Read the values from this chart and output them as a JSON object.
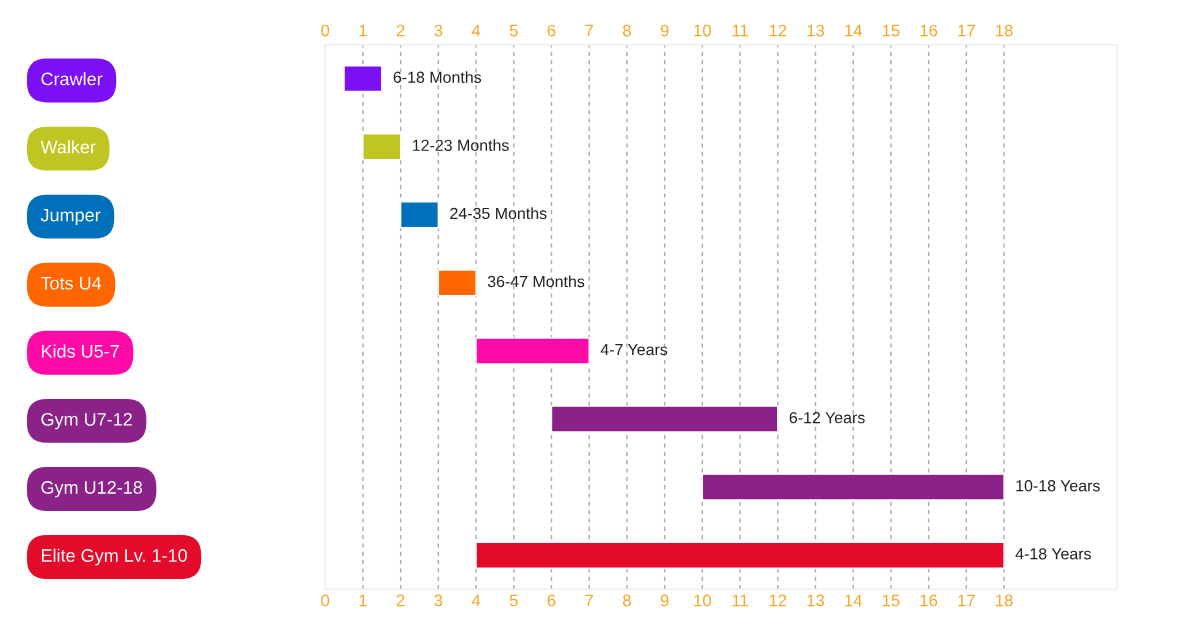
{
  "chart_data": {
    "type": "bar",
    "orientation": "horizontal",
    "categories": [
      "Crawler",
      "Walker",
      "Jumper",
      "Tots U4",
      "Kids U5-7",
      "Gym U7-12",
      "Gym U12-18",
      "Elite Gym Lv. 1-10"
    ],
    "base": [
      0.5,
      1,
      2,
      3,
      4,
      6,
      10,
      4
    ],
    "values": [
      1,
      1,
      1,
      1,
      3,
      6,
      8,
      14
    ],
    "value_labels": [
      "6-18 Months",
      "12-23 Months",
      "24-35 Months",
      "36-47 Months",
      "4-7 Years",
      "6-12 Years",
      "10-18 Years",
      "4-18 Years"
    ],
    "colors": [
      "#7b10f5",
      "#bfc523",
      "#0070ba",
      "#ff6600",
      "#ff0aa6",
      "#8b2288",
      "#8b2288",
      "#e30b2a"
    ],
    "xlim": [
      0,
      21
    ],
    "xticks": [
      0,
      1,
      2,
      3,
      4,
      5,
      6,
      7,
      8,
      9,
      10,
      11,
      12,
      13,
      14,
      15,
      16,
      17,
      18
    ],
    "x2lim": [
      0,
      21
    ],
    "x2ticks": [
      0,
      1,
      2,
      3,
      4,
      5,
      6,
      7,
      8,
      9,
      10,
      11,
      12,
      13,
      14,
      15,
      16,
      17,
      18
    ],
    "grid": "x",
    "legend": false
  }
}
